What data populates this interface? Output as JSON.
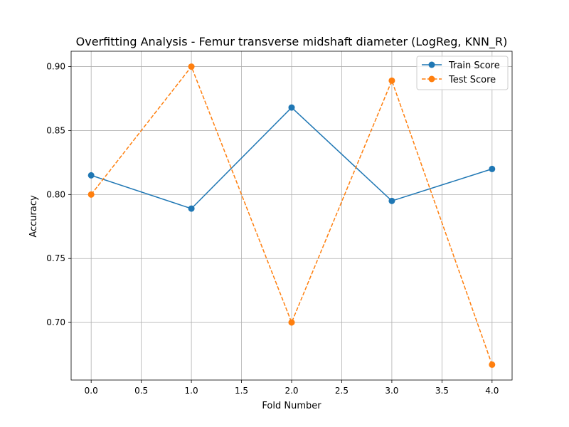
{
  "chart_data": {
    "type": "line",
    "title": "Overfitting Analysis - Femur transverse midshaft diameter (LogReg, KNN_R)",
    "xlabel": "Fold Number",
    "ylabel": "Accuracy",
    "xlim": [
      -0.2,
      4.2
    ],
    "ylim": [
      0.655,
      0.912
    ],
    "xticks": [
      0.0,
      0.5,
      1.0,
      1.5,
      2.0,
      2.5,
      3.0,
      3.5,
      4.0
    ],
    "xtick_labels": [
      "0.0",
      "0.5",
      "1.0",
      "1.5",
      "2.0",
      "2.5",
      "3.0",
      "3.5",
      "4.0"
    ],
    "yticks": [
      0.7,
      0.75,
      0.8,
      0.85,
      0.9
    ],
    "ytick_labels": [
      "0.70",
      "0.75",
      "0.80",
      "0.85",
      "0.90"
    ],
    "grid": true,
    "legend_position": "top-right",
    "x": [
      0,
      1,
      2,
      3,
      4
    ],
    "series": [
      {
        "name": "Train Score",
        "values": [
          0.815,
          0.789,
          0.868,
          0.795,
          0.82
        ],
        "color": "#1f77b4",
        "linestyle": "solid",
        "marker": "circle"
      },
      {
        "name": "Test Score",
        "values": [
          0.8,
          0.9,
          0.7,
          0.889,
          0.667
        ],
        "color": "#ff7f0e",
        "linestyle": "dashed",
        "marker": "circle"
      }
    ]
  }
}
